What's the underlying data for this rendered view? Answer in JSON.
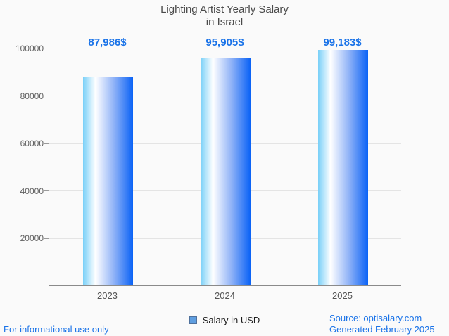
{
  "title": {
    "line1": "Lighting Artist Yearly Salary",
    "line2": "in Israel"
  },
  "chart_data": {
    "type": "bar",
    "categories": [
      "2023",
      "2024",
      "2025"
    ],
    "values": [
      87986,
      95905,
      99183
    ],
    "value_labels": [
      "87,986$",
      "95,905$",
      "99,183$"
    ],
    "series": [
      {
        "name": "Salary in USD",
        "values": [
          87986,
          95905,
          99183
        ]
      }
    ],
    "title": "Lighting Artist Yearly Salary in Israel",
    "xlabel": "",
    "ylabel": "",
    "ylim": [
      0,
      100000
    ],
    "yticks": [
      20000,
      40000,
      60000,
      80000,
      100000
    ],
    "grid": true,
    "legend_position": "bottom",
    "bar_gradient": [
      "#79d0f8",
      "#ffffff",
      "#0a62f6"
    ],
    "value_label_color": "#1a73e8"
  },
  "legend": {
    "label": "Salary in USD",
    "marker_fill": "#5f9ee0",
    "marker_border": "#50719c"
  },
  "footer": {
    "left": "For informational use only",
    "source": "Source: optisalary.com",
    "generated": "Generated February 2025",
    "link_color": "#1a73e8"
  }
}
